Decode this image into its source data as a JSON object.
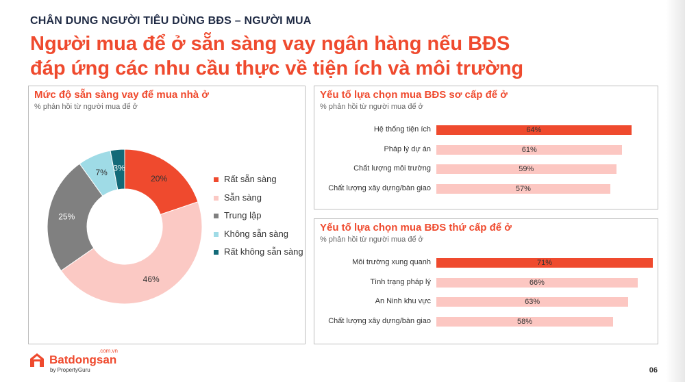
{
  "kicker": "CHÂN DUNG NGƯỜI TIÊU DÙNG BĐS – NGƯỜI MUA",
  "headline_line1": "Người mua để ở sẵn sàng vay ngân hàng nếu BĐS",
  "headline_line2": "đáp ứng các nhu cầu thực về tiện ích và môi trường",
  "colors": {
    "accent": "#ef4a2e",
    "light_bar": "#fcc7c2",
    "pie": [
      "#ef4a2e",
      "#fbc9c4",
      "#808080",
      "#9fdbe6",
      "#136a78"
    ]
  },
  "chart_data": [
    {
      "type": "pie",
      "title": "Mức độ sẵn sàng vay để mua nhà ở",
      "subtitle": "% phản hồi từ người mua để ở",
      "donut": true,
      "categories": [
        "Rất sẵn sàng",
        "Sẵn sàng",
        "Trung lập",
        "Không sẵn sàng",
        "Rất không sẵn sàng"
      ],
      "values": [
        20,
        46,
        25,
        7,
        3
      ],
      "data_labels": [
        "20%",
        "46%",
        "25%",
        "7%",
        "3%"
      ],
      "legend_position": "right"
    },
    {
      "type": "bar",
      "orientation": "horizontal",
      "title": "Yếu tố lựa chọn mua BĐS sơ cấp để ở",
      "subtitle": "% phản hồi từ người mua để ở",
      "categories": [
        "Hệ thống tiện ích",
        "Pháp lý dự án",
        "Chất lượng môi trường",
        "Chất lượng xây dựng/bàn giao"
      ],
      "values": [
        64,
        61,
        59,
        57
      ],
      "data_labels": [
        "64%",
        "61%",
        "59%",
        "57%"
      ],
      "highlight_index": 0
    },
    {
      "type": "bar",
      "orientation": "horizontal",
      "title": "Yếu tố lựa chọn mua BĐS thứ cấp để ở",
      "subtitle": "% phản hồi từ người mua để ở",
      "categories": [
        "Môi trường xung quanh",
        "Tình trạng pháp lý",
        "An Ninh khu vực",
        "Chất lượng xây dựng/bàn giao"
      ],
      "values": [
        71,
        66,
        63,
        58
      ],
      "data_labels": [
        "71%",
        "66%",
        "63%",
        "58%"
      ],
      "highlight_index": 0
    }
  ],
  "footer": {
    "logo_name": "Batdongsan",
    "logo_suffix": ".com.vn",
    "logo_by": "by PropertyGuru",
    "logo_icon": "house-icon",
    "page_number": "06"
  }
}
